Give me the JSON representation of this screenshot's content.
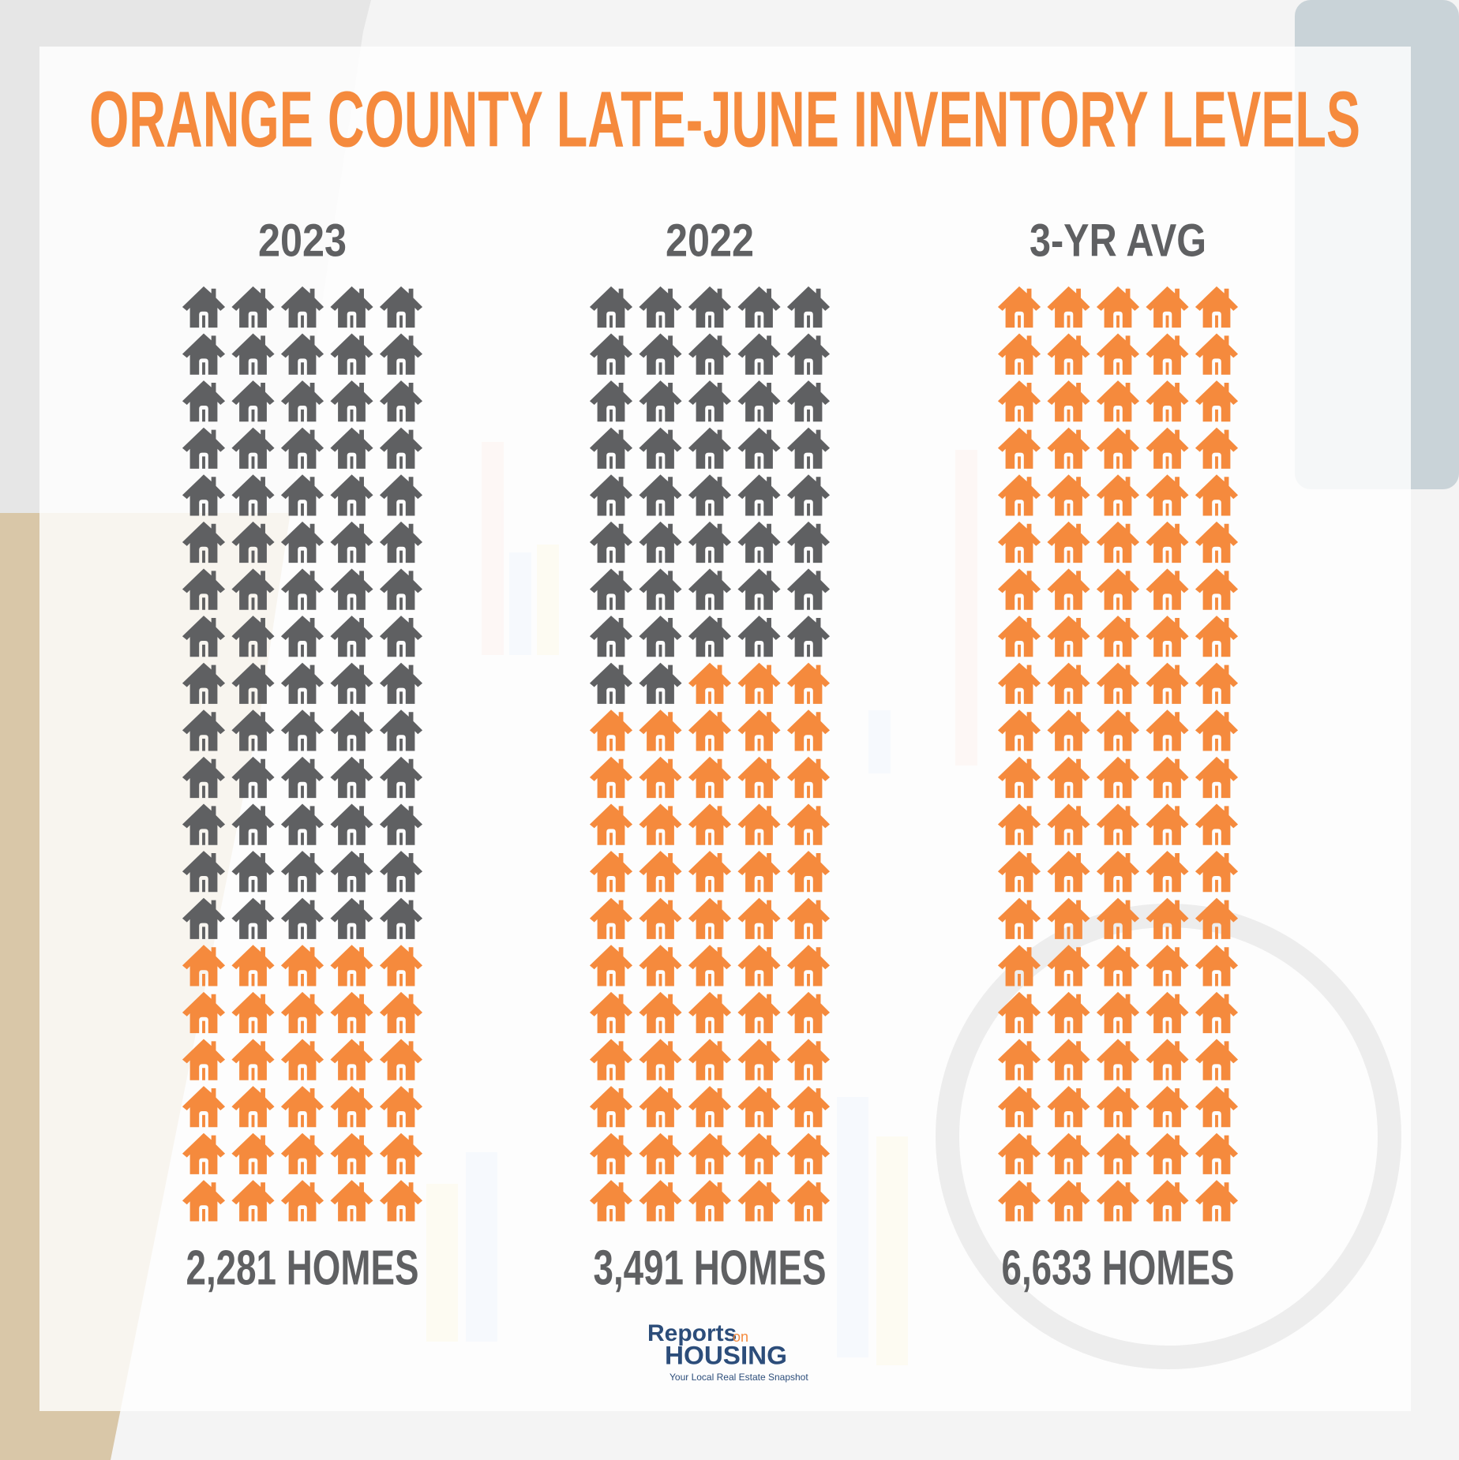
{
  "chart_data": {
    "type": "pictograph",
    "title": "ORANGE COUNTY LATE-JUNE INVENTORY LEVELS",
    "colors": [
      "#5f6062",
      "#f58a3d"
    ],
    "columns": [
      {
        "label": "2023",
        "caption": "2,281 HOMES",
        "counts": [
          70,
          30
        ]
      },
      {
        "label": "2022",
        "caption": "3,491 HOMES",
        "counts": [
          42,
          58
        ]
      },
      {
        "label": "3-YR AVG",
        "caption": "6,633 HOMES",
        "counts": [
          0,
          100
        ]
      }
    ]
  },
  "logo": {
    "name": "Reports",
    "small": "on",
    "brand": "HOUSING",
    "tagline": "Your Local Real Estate Snapshot"
  }
}
